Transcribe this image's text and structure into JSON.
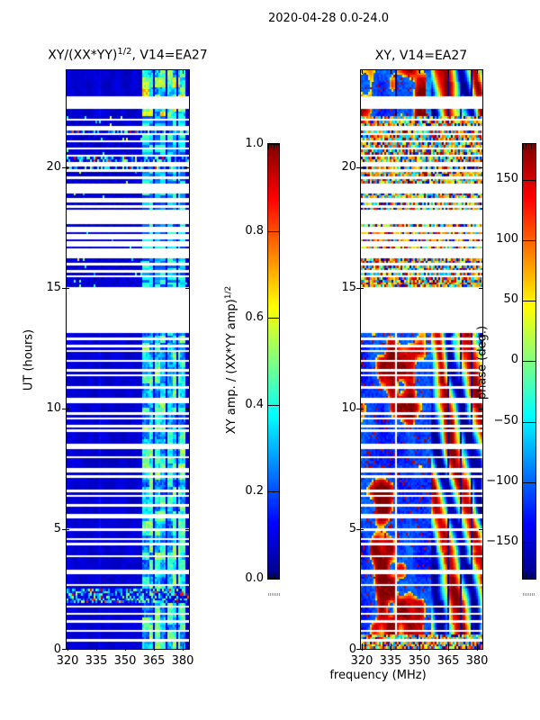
{
  "figure": {
    "suptitle": "2020-04-28 0.0-24.0"
  },
  "axes": {
    "ut_label": "UT (hours)",
    "freq_label": "frequency (MHz)",
    "ut_ticks": [
      "0",
      "5",
      "10",
      "15",
      "20"
    ],
    "freq_ticks": [
      "320",
      "335",
      "350",
      "365",
      "380"
    ]
  },
  "left_plot": {
    "title_base": "XY/(XX*YY)",
    "title_sup": "1/2",
    "title_rest": ", V14=EA27"
  },
  "right_plot": {
    "title": "XY, V14=EA27"
  },
  "amp_colorbar": {
    "label_base": "XY amp. / (XX*YY amp)",
    "label_sup": "1/2",
    "ticks": [
      "1.0",
      "0.8",
      "0.6",
      "0.4",
      "0.2",
      "0.0"
    ]
  },
  "phase_colorbar": {
    "label": "phase (deg.)",
    "ticks": [
      "150",
      "100",
      "50",
      "0",
      "−50",
      "−100",
      "−150"
    ]
  },
  "chart_data": [
    {
      "type": "heatmap",
      "title": "XY/(XX*YY)^{1/2}, V14=EA27",
      "xlabel": "frequency (MHz)",
      "ylabel": "UT (hours)",
      "x_range_mhz": [
        319,
        382.7
      ],
      "y_range_hours": [
        0,
        24
      ],
      "xticks": [
        320,
        335,
        350,
        365,
        380
      ],
      "yticks": [
        0,
        5,
        10,
        15,
        20
      ],
      "colormap": "jet",
      "grid": false,
      "colorbar_label": "XY amp. / (XX*YY amp)^{1/2}",
      "colorbar_range": [
        0.0,
        1.0
      ],
      "colorbar_ticks": [
        0.0,
        0.2,
        0.4,
        0.6,
        0.8,
        1.0
      ],
      "background_amp": 0.05,
      "rfi_band_mhz": [
        358.5,
        380.8
      ],
      "rfi_band_amp": [
        0.2,
        0.55
      ],
      "band_dropout_mhz": [
        [
          363.8,
          364.9
        ],
        [
          370.4,
          371.5
        ],
        [
          375.8,
          376.7
        ]
      ],
      "no_data_gap_hours": [
        13.05,
        15.0
      ],
      "striped_zone_hours": [
        15.02,
        22.05
      ],
      "white_blocks_hours": [
        [
          15.28,
          15.5
        ],
        [
          16.25,
          16.8
        ],
        [
          17.55,
          18.35
        ],
        [
          22.68,
          22.95
        ]
      ],
      "speckle_rows_hours": [
        [
          1.95,
          2.45
        ],
        [
          19.9,
          20.45
        ],
        [
          21.3,
          21.6
        ]
      ],
      "flagged_stripes_hours": [
        [
          0.38,
          0.08
        ],
        [
          0.72,
          0.08
        ],
        [
          1.18,
          0.1
        ],
        [
          1.48,
          0.07
        ],
        [
          1.78,
          0.08
        ],
        [
          2.62,
          0.08
        ],
        [
          3.12,
          0.09
        ],
        [
          3.28,
          0.07
        ],
        [
          3.82,
          0.08
        ],
        [
          4.38,
          0.09
        ],
        [
          4.55,
          0.07
        ],
        [
          4.98,
          0.08
        ],
        [
          5.42,
          0.08
        ],
        [
          5.58,
          0.1
        ],
        [
          5.98,
          0.07
        ],
        [
          6.38,
          0.08
        ],
        [
          6.55,
          0.07
        ],
        [
          7.12,
          0.09
        ],
        [
          7.32,
          0.07
        ],
        [
          7.48,
          0.08
        ],
        [
          7.92,
          0.08
        ],
        [
          8.32,
          0.09
        ],
        [
          8.48,
          0.07
        ],
        [
          9.02,
          0.08
        ],
        [
          9.22,
          0.07
        ],
        [
          9.58,
          0.09
        ],
        [
          9.72,
          0.07
        ],
        [
          10.22,
          0.08
        ],
        [
          10.38,
          0.08
        ],
        [
          10.82,
          0.09
        ],
        [
          11.32,
          0.08
        ],
        [
          11.52,
          0.07
        ],
        [
          11.98,
          0.08
        ],
        [
          12.32,
          0.09
        ],
        [
          12.58,
          0.07
        ],
        [
          12.82,
          0.08
        ],
        [
          22.5,
          0.1
        ],
        [
          22.62,
          0.08
        ]
      ],
      "description": "Cross-correlation amplitude dynamic spectrum: dark blue background (amp ~0.05) with a bright blocky cyan/green RFI band near 358-381 MHz, many horizontal white flagged-time stripes, a striped flagged zone from ~15 to 22 UT, and a blank no-data gap from ~13.1 to 15.0 UT."
    },
    {
      "type": "heatmap",
      "title": "XY, V14=EA27",
      "xlabel": "frequency (MHz)",
      "ylabel": "UT (hours)",
      "x_range_mhz": [
        319,
        382.7
      ],
      "y_range_hours": [
        0,
        24
      ],
      "xticks": [
        320,
        335,
        350,
        365,
        380
      ],
      "yticks": [
        0,
        5,
        10,
        15,
        20
      ],
      "colormap": "jet",
      "grid": false,
      "colorbar_label": "phase (deg.)",
      "colorbar_range": [
        -180,
        180
      ],
      "colorbar_ticks": [
        -150,
        -100,
        -50,
        0,
        50,
        100,
        150
      ],
      "rfi_band_mhz": [
        356,
        382.7
      ],
      "band_dropout_mhz": [
        [
          364.3,
          365.1
        ],
        [
          370.9,
          371.7
        ],
        [
          376.6,
          377.3
        ]
      ],
      "white_vline_mhz": [
        337.0,
        337.8
      ],
      "no_data_gap_hours": [
        13.05,
        15.0
      ],
      "striped_zone_hours": [
        15.02,
        22.05
      ],
      "white_blocks_hours": [
        [
          15.28,
          15.5
        ],
        [
          16.25,
          16.8
        ],
        [
          17.55,
          18.35
        ],
        [
          22.68,
          22.95
        ]
      ],
      "speckle_rows_hours": [
        [
          0.0,
          0.55
        ]
      ],
      "flagged_stripes_hours": [
        [
          0.38,
          0.08
        ],
        [
          0.72,
          0.08
        ],
        [
          1.18,
          0.1
        ],
        [
          1.48,
          0.07
        ],
        [
          1.78,
          0.08
        ],
        [
          2.62,
          0.08
        ],
        [
          3.12,
          0.09
        ],
        [
          3.28,
          0.07
        ],
        [
          3.82,
          0.08
        ],
        [
          4.38,
          0.09
        ],
        [
          4.55,
          0.07
        ],
        [
          4.98,
          0.08
        ],
        [
          5.42,
          0.08
        ],
        [
          5.58,
          0.1
        ],
        [
          5.98,
          0.07
        ],
        [
          6.38,
          0.08
        ],
        [
          6.55,
          0.07
        ],
        [
          7.12,
          0.09
        ],
        [
          7.32,
          0.07
        ],
        [
          7.48,
          0.08
        ],
        [
          7.92,
          0.08
        ],
        [
          8.32,
          0.09
        ],
        [
          8.48,
          0.07
        ],
        [
          9.02,
          0.08
        ],
        [
          9.22,
          0.07
        ],
        [
          9.58,
          0.09
        ],
        [
          9.72,
          0.07
        ],
        [
          10.22,
          0.08
        ],
        [
          10.38,
          0.08
        ],
        [
          10.82,
          0.09
        ],
        [
          11.32,
          0.08
        ],
        [
          11.52,
          0.07
        ],
        [
          11.98,
          0.08
        ],
        [
          12.32,
          0.09
        ],
        [
          12.58,
          0.07
        ],
        [
          12.82,
          0.08
        ],
        [
          22.5,
          0.1
        ],
        [
          22.62,
          0.08
        ]
      ],
      "description": "Cross-correlation phase in degrees: mostly blue (~-150 deg) with large red/orange patches (~+150 deg) below 353 MHz, smooth cyan-to-yellow-to-red phase structure in the 356-381 MHz band, a white vertical line near 337 MHz, multicolored speckled rows between 15 and 22 UT, white flagged stripes and the same 13.1-15.0 UT no-data gap."
    }
  ]
}
